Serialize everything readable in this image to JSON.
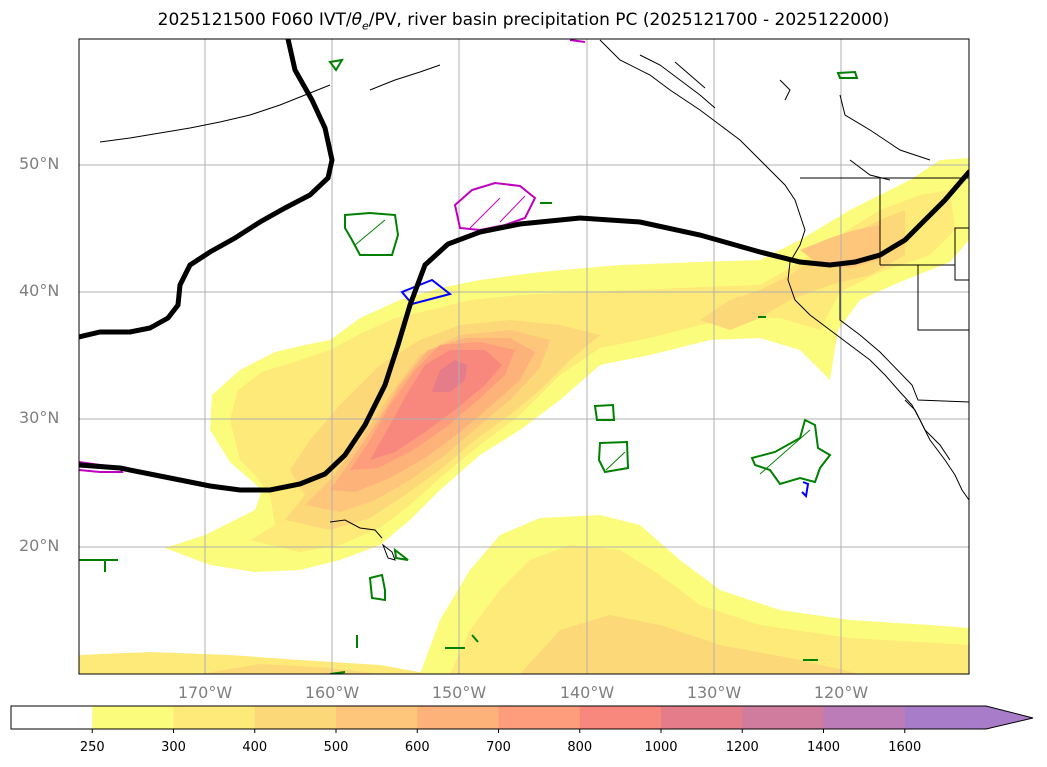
{
  "title_prefix": "2025121500 F060 IVT/",
  "title_theta": "θ",
  "title_sub": "e",
  "title_suffix": "/PV, river basin precipitation PC (2025121700 - 2025122000)",
  "latitude_labels": [
    "50°N",
    "40°N",
    "30°N",
    "20°N"
  ],
  "longitude_labels": [
    "170°W",
    "160°W",
    "150°W",
    "140°W",
    "130°W",
    "120°W"
  ],
  "colorbar": {
    "levels": [
      "250",
      "300",
      "400",
      "500",
      "600",
      "700",
      "800",
      "1000",
      "1200",
      "1400",
      "1600"
    ],
    "colors": [
      "#ffffff",
      "#fcfc7c",
      "#fdea78",
      "#fdd878",
      "#fdc67a",
      "#fdb27a",
      "#fd9d7c",
      "#f8887e",
      "#e47c8a",
      "#d07c9e",
      "#bc7cb8",
      "#a87cc8"
    ],
    "extend": "max"
  },
  "map_colors": {
    "ivt_fill": "#fdea78",
    "pv_line": "#000000",
    "coastline": "#000000",
    "contour_green": "#008000",
    "contour_magenta": "#bf00bf",
    "contour_blue": "#0000ff"
  }
}
